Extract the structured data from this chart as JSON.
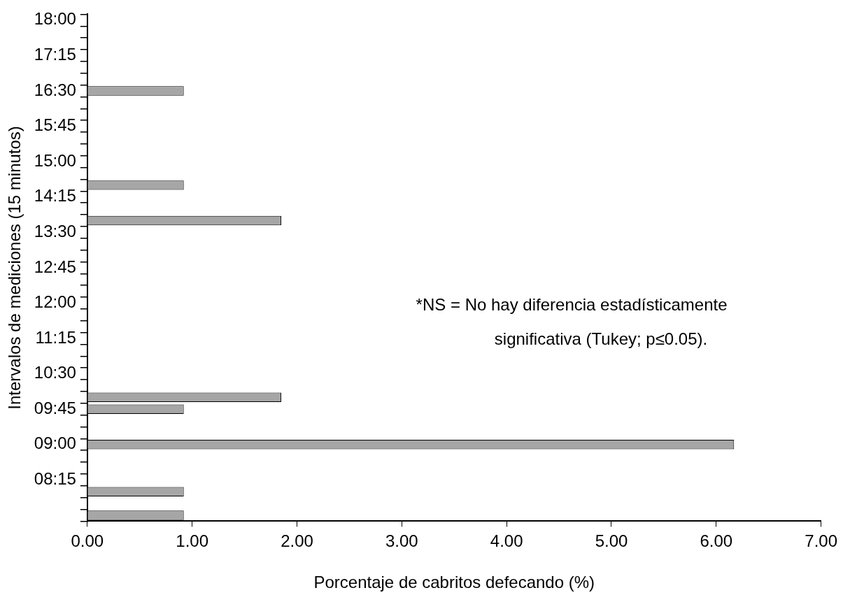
{
  "chart_data": {
    "type": "bar",
    "orientation": "horizontal",
    "xlabel": "Porcentaje de cabritos defecando (%)",
    "ylabel": "Intervalos de mediciones (15 minutos)",
    "categories": [
      "18:00",
      null,
      null,
      "17:15",
      null,
      null,
      "16:30",
      null,
      null,
      "15:45",
      null,
      null,
      "15:00",
      null,
      null,
      "14:15",
      null,
      null,
      "13:30",
      null,
      null,
      "12:45",
      null,
      null,
      "12:00",
      null,
      null,
      "11:15",
      null,
      null,
      "10:30",
      null,
      null,
      "09:45",
      null,
      null,
      "09:00",
      null,
      null,
      "08:15",
      null,
      null,
      null
    ],
    "values": [
      null,
      null,
      null,
      null,
      null,
      null,
      0.92,
      null,
      null,
      null,
      null,
      null,
      null,
      null,
      0.92,
      null,
      null,
      1.85,
      null,
      null,
      null,
      null,
      null,
      null,
      null,
      null,
      null,
      null,
      null,
      null,
      null,
      null,
      1.85,
      0.92,
      null,
      null,
      6.17,
      null,
      null,
      null,
      0.92,
      null,
      0.92
    ],
    "color": "#a6a6a6",
    "xlim": [
      0,
      7
    ],
    "xticks": [
      {
        "value": 0,
        "label": "0.00"
      },
      {
        "value": 1,
        "label": "1.00"
      },
      {
        "value": 2,
        "label": "2.00"
      },
      {
        "value": 3,
        "label": "3.00"
      },
      {
        "value": 4,
        "label": "4.00"
      },
      {
        "value": 5,
        "label": "5.00"
      },
      {
        "value": 6,
        "label": "6.00"
      },
      {
        "value": 7,
        "label": "7.00"
      }
    ],
    "grid": false,
    "legend": false,
    "annotations": [
      "*NS = No hay diferencia estadísticamente",
      "significativa (Tukey; p≤0.05)."
    ]
  }
}
